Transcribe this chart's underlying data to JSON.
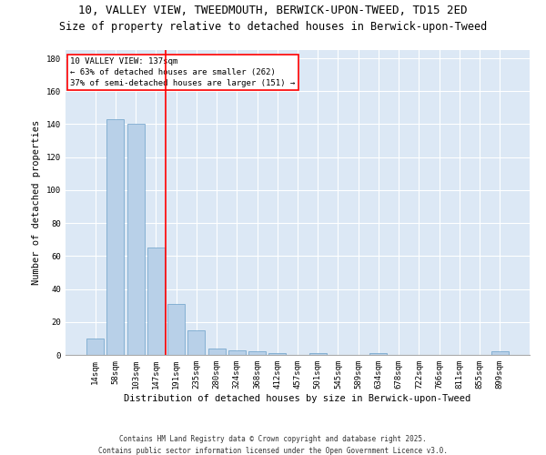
{
  "title1": "10, VALLEY VIEW, TWEEDMOUTH, BERWICK-UPON-TWEED, TD15 2ED",
  "title2": "Size of property relative to detached houses in Berwick-upon-Tweed",
  "xlabel": "Distribution of detached houses by size in Berwick-upon-Tweed",
  "ylabel": "Number of detached properties",
  "categories": [
    "14sqm",
    "58sqm",
    "103sqm",
    "147sqm",
    "191sqm",
    "235sqm",
    "280sqm",
    "324sqm",
    "368sqm",
    "412sqm",
    "457sqm",
    "501sqm",
    "545sqm",
    "589sqm",
    "634sqm",
    "678sqm",
    "722sqm",
    "766sqm",
    "811sqm",
    "855sqm",
    "899sqm"
  ],
  "values": [
    10,
    143,
    140,
    65,
    31,
    15,
    4,
    3,
    2,
    1,
    0,
    1,
    0,
    0,
    1,
    0,
    0,
    0,
    0,
    0,
    2
  ],
  "bar_color": "#b8d0e8",
  "bar_edgecolor": "#6a9fc8",
  "vline_x": 3.5,
  "vline_color": "red",
  "annotation_line1": "10 VALLEY VIEW: 137sqm",
  "annotation_line2": "← 63% of detached houses are smaller (262)",
  "annotation_line3": "37% of semi-detached houses are larger (151) →",
  "annotation_box_color": "white",
  "annotation_box_edgecolor": "red",
  "ylim": [
    0,
    185
  ],
  "yticks": [
    0,
    20,
    40,
    60,
    80,
    100,
    120,
    140,
    160,
    180
  ],
  "background_color": "#dce8f5",
  "grid_color": "#ffffff",
  "footer1": "Contains HM Land Registry data © Crown copyright and database right 2025.",
  "footer2": "Contains public sector information licensed under the Open Government Licence v3.0.",
  "title_fontsize": 9,
  "subtitle_fontsize": 8.5,
  "axis_label_fontsize": 7.5,
  "tick_fontsize": 6.5,
  "annotation_fontsize": 6.5,
  "footer_fontsize": 5.5
}
